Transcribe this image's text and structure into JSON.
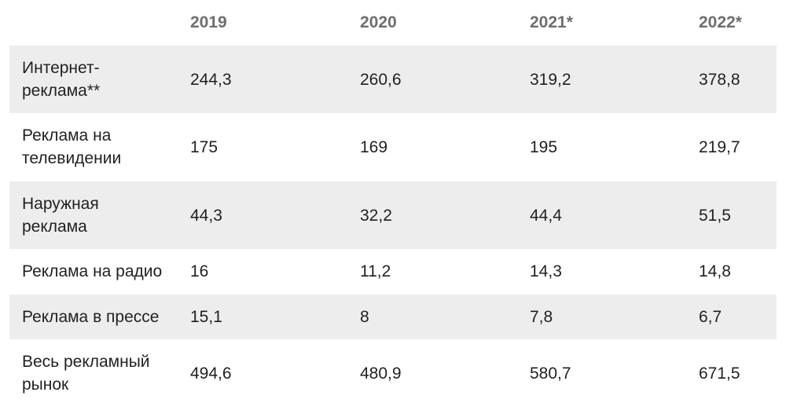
{
  "table": {
    "headers": [
      "",
      "2019",
      "2020",
      "2021*",
      "2022*"
    ],
    "rows": [
      {
        "label": "Интернет-\nреклама**",
        "values": [
          "244,3",
          "260,6",
          "319,2",
          "378,8"
        ]
      },
      {
        "label": "Реклама на\nтелевидении",
        "values": [
          "175",
          "169",
          "195",
          "219,7"
        ]
      },
      {
        "label": "Наружная\nреклама",
        "values": [
          "44,3",
          "32,2",
          "44,4",
          "51,5"
        ]
      },
      {
        "label": "Реклама на радио",
        "values": [
          "16",
          "11,2",
          "14,3",
          "14,8"
        ]
      },
      {
        "label": "Реклама в прессе",
        "values": [
          "15,1",
          "8",
          "7,8",
          "6,7"
        ]
      },
      {
        "label": "Весь рекламный\nрынок",
        "values": [
          "494,6",
          "480,9",
          "580,7",
          "671,5"
        ]
      }
    ]
  }
}
